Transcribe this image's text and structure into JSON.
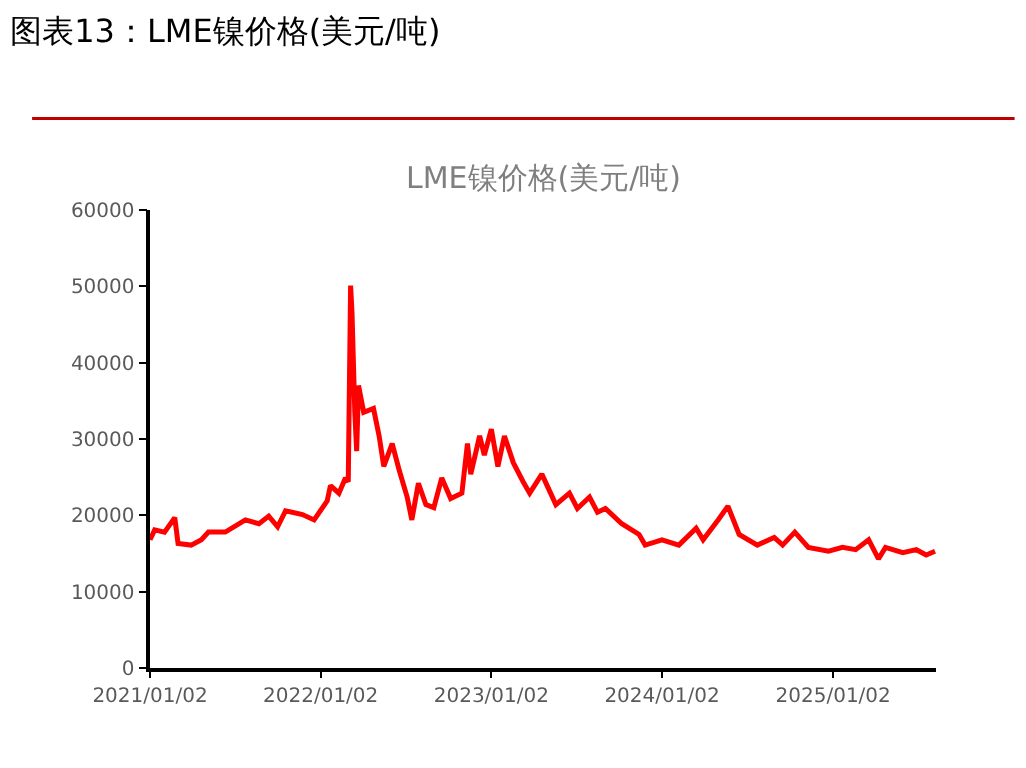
{
  "chart_data": {
    "type": "line",
    "title": "图表13：LME镍价格(美元/吨)",
    "subtitle": "LME镍价格(美元/吨)",
    "x": [
      "2021-01-02",
      "2021-01-12",
      "2021-02-02",
      "2021-02-24",
      "2021-03-03",
      "2021-03-31",
      "2021-04-22",
      "2021-05-07",
      "2021-06-12",
      "2021-07-25",
      "2021-08-23",
      "2021-09-13",
      "2021-10-02",
      "2021-10-19",
      "2021-11-24",
      "2021-12-19",
      "2022-01-16",
      "2022-01-23",
      "2022-02-10",
      "2022-02-24",
      "2022-03-02",
      "2022-03-07",
      "2022-03-10",
      "2022-03-16",
      "2022-03-20",
      "2022-03-24",
      "2022-04-04",
      "2022-04-25",
      "2022-05-07",
      "2022-05-17",
      "2022-06-04",
      "2022-06-19",
      "2022-07-06",
      "2022-07-16",
      "2022-07-30",
      "2022-08-15",
      "2022-09-01",
      "2022-09-18",
      "2022-10-07",
      "2022-10-31",
      "2022-11-12",
      "2022-11-19",
      "2022-12-08",
      "2022-12-18",
      "2023-01-02",
      "2023-01-16",
      "2023-01-30",
      "2023-02-18",
      "2023-03-11",
      "2023-03-25",
      "2023-04-20",
      "2023-05-20",
      "2023-06-18",
      "2023-07-05",
      "2023-07-31",
      "2023-08-17",
      "2023-09-03",
      "2023-10-08",
      "2023-11-14",
      "2023-11-27",
      "2024-01-02",
      "2024-02-07",
      "2024-03-15",
      "2024-03-30",
      "2024-05-01",
      "2024-05-22",
      "2024-06-15",
      "2024-07-24",
      "2024-08-29",
      "2024-09-16",
      "2024-10-12",
      "2024-11-10",
      "2024-12-23",
      "2025-01-22",
      "2025-02-19",
      "2025-03-19",
      "2025-04-09",
      "2025-04-24",
      "2025-05-31",
      "2025-06-29",
      "2025-07-20",
      "2025-08-08"
    ],
    "series": [
      {
        "color": "#ff0000",
        "values": [
          16800,
          18100,
          17800,
          19700,
          16300,
          16100,
          16800,
          17800,
          17800,
          19400,
          18900,
          19900,
          18500,
          20600,
          20100,
          19400,
          21900,
          23900,
          22900,
          24900,
          24400,
          50100,
          46600,
          33500,
          28400,
          37000,
          33500,
          34000,
          30400,
          26400,
          29400,
          25900,
          22400,
          19400,
          24200,
          21400,
          21000,
          24900,
          22200,
          22900,
          29400,
          25400,
          30400,
          27900,
          31300,
          26400,
          30400,
          26900,
          24400,
          22900,
          25400,
          21400,
          22900,
          20900,
          22400,
          20400,
          20900,
          18900,
          17500,
          16100,
          16800,
          16100,
          18300,
          16800,
          19400,
          21200,
          17500,
          16100,
          17100,
          16100,
          17800,
          15800,
          15300,
          15800,
          15500,
          16800,
          14300,
          15800,
          15100,
          15500,
          14800,
          15300
        ]
      }
    ],
    "xlim": [
      "2021-01-02",
      "2025-08-10"
    ],
    "xticks": [
      {
        "value": "2021-01-02",
        "label": "2021/01/02"
      },
      {
        "value": "2022-01-02",
        "label": "2022/01/02"
      },
      {
        "value": "2023-01-02",
        "label": "2023/01/02"
      },
      {
        "value": "2024-01-02",
        "label": "2024/01/02"
      },
      {
        "value": "2025-01-02",
        "label": "2025/01/02"
      }
    ],
    "ylim": [
      0,
      60000
    ],
    "yticks": [
      0,
      10000,
      20000,
      30000,
      40000,
      50000,
      60000
    ],
    "grid": false,
    "legend": false,
    "marker": "none",
    "line_style": "solid"
  }
}
